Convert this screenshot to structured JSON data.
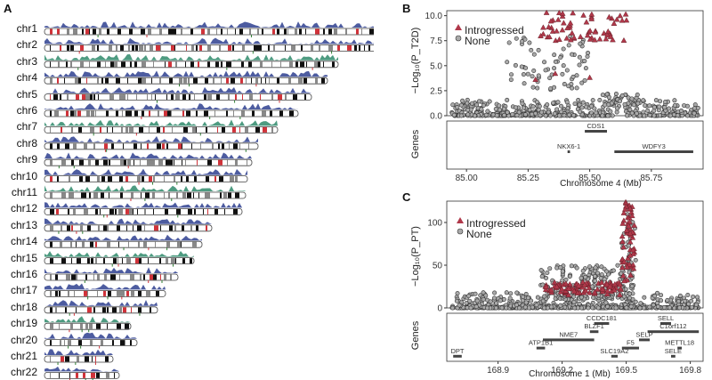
{
  "panels": {
    "a": "A",
    "b": "B",
    "c": "C"
  },
  "chromosomes": [
    {
      "name": "chr1",
      "length": 400
    },
    {
      "name": "chr2",
      "length": 392
    },
    {
      "name": "chr3",
      "length": 330
    },
    {
      "name": "chr4",
      "length": 318
    },
    {
      "name": "chr5",
      "length": 300
    },
    {
      "name": "chr6",
      "length": 285
    },
    {
      "name": "chr7",
      "length": 262
    },
    {
      "name": "chr8",
      "length": 240
    },
    {
      "name": "chr9",
      "length": 233
    },
    {
      "name": "chr10",
      "length": 228
    },
    {
      "name": "chr11",
      "length": 226
    },
    {
      "name": "chr12",
      "length": 222
    },
    {
      "name": "chr13",
      "length": 188
    },
    {
      "name": "chr14",
      "length": 177
    },
    {
      "name": "chr15",
      "length": 168
    },
    {
      "name": "chr16",
      "length": 150
    },
    {
      "name": "chr17",
      "length": 136
    },
    {
      "name": "chr18",
      "length": 127
    },
    {
      "name": "chr19",
      "length": 97
    },
    {
      "name": "chr20",
      "length": 104
    },
    {
      "name": "chr21",
      "length": 77
    },
    {
      "name": "chr22",
      "length": 84
    }
  ],
  "plot_b": {
    "ylabel": "−Log₁₀(P_T2D)",
    "yticks": [
      "10.0",
      "7.5",
      "5.0",
      "2.5",
      "0.0"
    ],
    "xlabel": "Chromosome 4 (Mb)",
    "xticks": [
      "85.00",
      "85.25",
      "85.50",
      "85.75"
    ],
    "genes_label": "Genes",
    "legend": [
      "Introgressed",
      "None"
    ],
    "genes": [
      {
        "name": "CDS1",
        "start": 85.48,
        "end": 85.57,
        "row": 0
      },
      {
        "name": "NKX6-1",
        "start": 85.41,
        "end": 85.42,
        "row": 1
      },
      {
        "name": "WDFY3",
        "start": 85.6,
        "end": 85.92,
        "row": 1
      }
    ],
    "xlim": [
      84.92,
      85.96
    ],
    "ylim": [
      0,
      10.5
    ]
  },
  "plot_c": {
    "ylabel": "−Log₁₀(P_PT)",
    "yticks": [
      "100",
      "50",
      "0"
    ],
    "xlabel": "Chromosome 1 (Mb)",
    "xticks": [
      "168.9",
      "169.2",
      "169.5",
      "169.8"
    ],
    "genes_label": "Genes",
    "legend": [
      "Introgressed",
      "None"
    ],
    "genes": [
      {
        "name": "CCDC181",
        "start": 169.35,
        "end": 169.42,
        "row": 0
      },
      {
        "name": "SELL",
        "start": 169.66,
        "end": 169.71,
        "row": 0
      },
      {
        "name": "BLZF1",
        "start": 169.33,
        "end": 169.37,
        "row": 1
      },
      {
        "name": "C1orf112",
        "start": 169.6,
        "end": 169.84,
        "row": 1
      },
      {
        "name": "NME7",
        "start": 169.11,
        "end": 169.35,
        "row": 2
      },
      {
        "name": "SELP",
        "start": 169.56,
        "end": 169.61,
        "row": 2
      },
      {
        "name": "ATP1B1",
        "start": 169.08,
        "end": 169.12,
        "row": 3
      },
      {
        "name": "F5",
        "start": 169.48,
        "end": 169.56,
        "row": 3
      },
      {
        "name": "METTL18",
        "start": 169.74,
        "end": 169.76,
        "row": 3
      },
      {
        "name": "DPT",
        "start": 168.69,
        "end": 168.73,
        "row": 4
      },
      {
        "name": "SLC19A2",
        "start": 169.43,
        "end": 169.46,
        "row": 4
      },
      {
        "name": "SELE",
        "start": 169.71,
        "end": 169.73,
        "row": 4
      }
    ],
    "xlim": [
      168.66,
      169.86
    ],
    "ylim": [
      0,
      125
    ]
  },
  "colors": {
    "introgressed": "#b0384a",
    "none_fill": "#aaaaaa",
    "band_dark": "#111111",
    "band_red": "#d0333a",
    "density_blue": "#2e3f8f",
    "density_green": "#2f8a6b"
  }
}
